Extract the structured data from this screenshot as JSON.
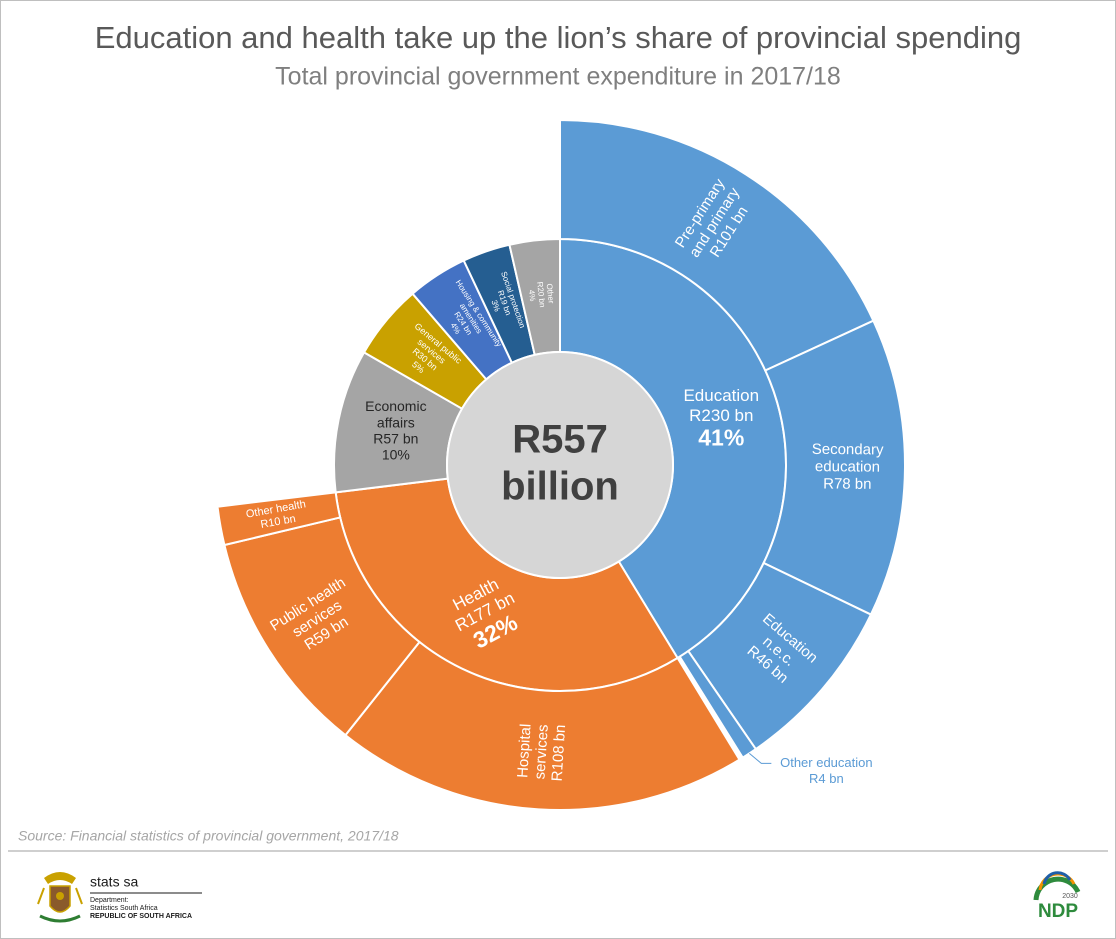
{
  "chart_data": {
    "type": "sunburst",
    "title": "Education and health take up the lion’s share of provincial spending",
    "subtitle": "Total provincial government expenditure in 2017/18",
    "center_label": [
      "R557",
      "billion"
    ],
    "segments": [
      {
        "name": [
          "Education"
        ],
        "value": 230,
        "value_label": "R230 bn",
        "share_label": "41%",
        "color": "#5b9bd5",
        "children": [
          {
            "name": [
              "Pre-primary",
              "and primary"
            ],
            "value": 101,
            "value_label": "R101 bn"
          },
          {
            "name": [
              "Secondary",
              "education"
            ],
            "value": 78,
            "value_label": "R78 bn"
          },
          {
            "name": [
              "Education",
              "n.e.c."
            ],
            "value": 46,
            "value_label": "R46 bn"
          },
          {
            "name": [
              "Other education"
            ],
            "value": 4,
            "value_label": "R4 bn"
          }
        ]
      },
      {
        "name": [
          "Health"
        ],
        "value": 177,
        "value_label": "R177 bn",
        "share_label": "32%",
        "color": "#ed7d31",
        "children": [
          {
            "name": [
              "Hospital",
              "services"
            ],
            "value": 108,
            "value_label": "R108 bn"
          },
          {
            "name": [
              "Public health",
              "services"
            ],
            "value": 59,
            "value_label": "R59 bn"
          },
          {
            "name": [
              "Other health"
            ],
            "value": 10,
            "value_label": "R10 bn"
          }
        ]
      },
      {
        "name": [
          "Economic",
          "affairs"
        ],
        "value": 57,
        "value_label": "R57 bn",
        "share_label": "10%",
        "color": "#a5a5a5"
      },
      {
        "name": [
          "General public",
          "services"
        ],
        "value": 30,
        "value_label": "R30 bn",
        "share_label": "5%",
        "color": "#c9a100"
      },
      {
        "name": [
          "Housing & community",
          "amenities"
        ],
        "value": 24,
        "value_label": "R24 bn",
        "share_label": "4%",
        "color": "#4472c4"
      },
      {
        "name": [
          "Social protection"
        ],
        "value": 19,
        "value_label": "R19 bn",
        "share_label": "3%",
        "color": "#255e91"
      },
      {
        "name": [
          "Other"
        ],
        "value": 20,
        "value_label": "R20 bn",
        "share_label": "4%",
        "color": "#a5a5a5"
      }
    ],
    "source": "Source: Financial statistics of provincial government, 2017/18"
  },
  "footer": {
    "org": "stats sa",
    "dept_lines": [
      "Department:",
      "Statistics South Africa"
    ],
    "country": "REPUBLIC OF SOUTH AFRICA",
    "ndp": "NDP",
    "ndp_year": "2030"
  }
}
